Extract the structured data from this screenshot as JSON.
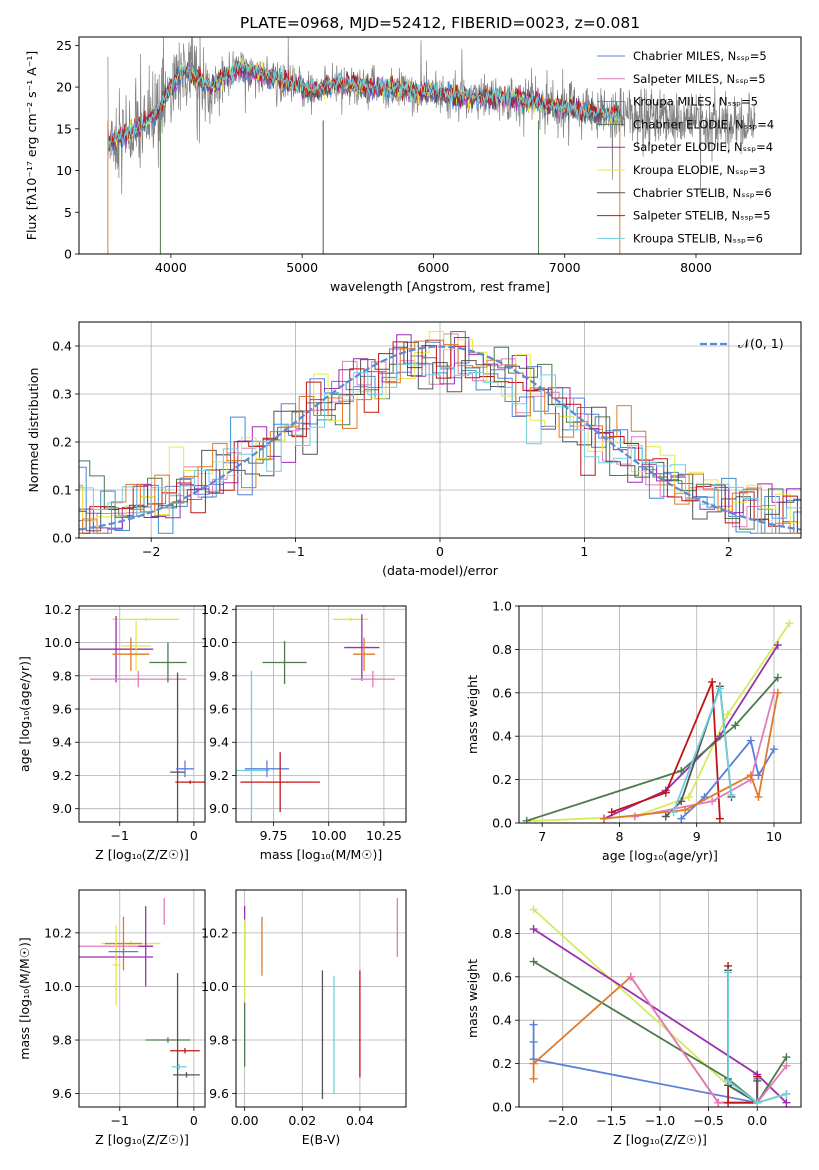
{
  "suptitle": "PLATE=0968, MJD=52412, FIBERID=0023, z=0.081",
  "colors": {
    "Chabrier MILES": "#5b7fd9",
    "Salpeter MILES": "#e07cbc",
    "Kroupa MILES": "#3a8fd0",
    "Chabrier ELODIE": "#4d7a4d",
    "Salpeter ELODIE": "#9a2fb0",
    "Kroupa ELODIE": "#e8e844",
    "Chabrier STELIB": "#555555",
    "Salpeter STELIB": "#c01515",
    "Kroupa STELIB": "#6fd0e0",
    "orange": "#e07a2a",
    "lime": "#d4ec5a",
    "teal": "#5a9a86",
    "data": "#808080"
  },
  "chart_data": [
    {
      "id": "spectrum",
      "type": "line",
      "xlabel": "wavelength [Angstrom, rest frame]",
      "ylabel": "Flux [fλ10⁻¹⁷ erg cm⁻² s⁻¹ A⁻¹]",
      "xlim": [
        3300,
        8800
      ],
      "ylim": [
        0,
        26
      ],
      "xticks": [
        "4000",
        "5000",
        "6000",
        "7000",
        "8000"
      ],
      "yticks": [
        "0",
        "5",
        "10",
        "15",
        "20",
        "25"
      ],
      "legend_position": "upper right",
      "legend": [
        {
          "name": "Chabrier MILES, Nₛₛₚ=5",
          "color": "#5b7fd9"
        },
        {
          "name": "Salpeter MILES, Nₛₛₚ=5",
          "color": "#e07cbc"
        },
        {
          "name": "Kroupa MILES, Nₛₛₚ=5",
          "color": "#3a8fd0"
        },
        {
          "name": "Chabrier ELODIE, Nₛₛₚ=4",
          "color": "#4d7a4d"
        },
        {
          "name": "Salpeter ELODIE, Nₛₛₚ=4",
          "color": "#9a2fb0"
        },
        {
          "name": "Kroupa ELODIE, Nₛₛₚ=3",
          "color": "#e8e844"
        },
        {
          "name": "Chabrier STELIB, Nₛₛₚ=6",
          "color": "#555555"
        },
        {
          "name": "Salpeter STELIB, Nₛₛₚ=5",
          "color": "#c01515"
        },
        {
          "name": "Kroupa STELIB, Nₛₛₚ=6",
          "color": "#6fd0e0"
        }
      ],
      "continuum": [
        [
          3520,
          13.5
        ],
        [
          3700,
          14.5
        ],
        [
          3900,
          17
        ],
        [
          4000,
          20
        ],
        [
          4100,
          22
        ],
        [
          4200,
          21
        ],
        [
          4300,
          20
        ],
        [
          4400,
          21
        ],
        [
          4500,
          22
        ],
        [
          4600,
          22
        ],
        [
          4700,
          21.5
        ],
        [
          4800,
          21
        ],
        [
          4900,
          20.5
        ],
        [
          5000,
          20
        ],
        [
          5100,
          19.5
        ],
        [
          5200,
          20
        ],
        [
          5300,
          20.5
        ],
        [
          5400,
          20.3
        ],
        [
          5500,
          20
        ],
        [
          5600,
          19.8
        ],
        [
          5800,
          19.5
        ],
        [
          6000,
          19.2
        ],
        [
          6200,
          18.8
        ],
        [
          6400,
          18.6
        ],
        [
          6500,
          18.8
        ],
        [
          6700,
          18.3
        ],
        [
          6900,
          17.8
        ],
        [
          7100,
          17.2
        ],
        [
          7300,
          16.8
        ],
        [
          7420,
          16.5
        ]
      ],
      "data_extent": [
        3520,
        8450
      ]
    },
    {
      "id": "residuals",
      "type": "histogram",
      "xlabel": "(data-model)/error",
      "ylabel": "Normed distribution",
      "xlim": [
        -2.5,
        2.5
      ],
      "ylim": [
        0,
        0.45
      ],
      "xticks": [
        "−2",
        "−1",
        "0",
        "1",
        "2"
      ],
      "yticks": [
        "0.0",
        "0.1",
        "0.2",
        "0.3",
        "0.4"
      ],
      "legend": [
        {
          "name": "𝒩(0, 1)",
          "color": "#5b8ad9",
          "style": "dashed"
        }
      ],
      "reference_curve": "normal(0,1)"
    },
    {
      "id": "age-vs-Z",
      "type": "errorbar",
      "xlabel": "Z [log₁₀(Z/Z☉)]",
      "ylabel": "age  [log₁₀(age/yr)]",
      "xlim": [
        -1.55,
        0.15
      ],
      "ylim": [
        8.92,
        10.22
      ],
      "xticks": [
        "−1",
        "0"
      ],
      "yticks": [
        "9.0",
        "9.2",
        "9.4",
        "9.6",
        "9.8",
        "10.0",
        "10.2"
      ],
      "points": [
        {
          "x": -0.65,
          "y": 10.14,
          "xerr": 0.45,
          "yerr": 0.01,
          "color": "#d4ec5a"
        },
        {
          "x": -1.05,
          "y": 9.96,
          "xerr": 0.5,
          "yerr": 0.2,
          "color": "#9a2fb0"
        },
        {
          "x": -0.78,
          "y": 9.98,
          "xerr": 0.2,
          "yerr": 0.15,
          "color": "#e8e844"
        },
        {
          "x": -0.85,
          "y": 9.93,
          "xerr": 0.25,
          "yerr": 0.1,
          "color": "#e07a2a"
        },
        {
          "x": -0.75,
          "y": 9.78,
          "xerr": 0.65,
          "yerr": 0.05,
          "color": "#e07cbc"
        },
        {
          "x": -0.35,
          "y": 9.88,
          "xerr": 0.25,
          "yerr": 0.12,
          "color": "#4d7a4d"
        },
        {
          "x": -0.22,
          "y": 9.22,
          "xerr": 0.1,
          "yerr": 0.6,
          "color": "#555555"
        },
        {
          "x": -0.12,
          "y": 9.24,
          "xerr": 0.12,
          "yerr": 0.05,
          "color": "#5b7fd9"
        },
        {
          "x": -0.05,
          "y": 9.16,
          "xerr": 0.2,
          "yerr": 0.01,
          "color": "#c01515"
        }
      ]
    },
    {
      "id": "age-vs-mass",
      "type": "errorbar",
      "xlabel": "mass [log₁₀(M/M☉)]",
      "ylabel": "",
      "xlim": [
        9.58,
        10.35
      ],
      "ylim": [
        8.92,
        10.22
      ],
      "xticks": [
        "9.75",
        "10.00",
        "10.25"
      ],
      "yticks": [
        "9.0",
        "9.2",
        "9.4",
        "9.6",
        "9.8",
        "10.0",
        "10.2"
      ],
      "points": [
        {
          "x": 10.1,
          "y": 10.14,
          "xerr": 0.08,
          "yerr": 0.01,
          "color": "#d4ec5a"
        },
        {
          "x": 10.15,
          "y": 9.97,
          "xerr": 0.08,
          "yerr": 0.2,
          "color": "#9a2fb0"
        },
        {
          "x": 10.16,
          "y": 9.93,
          "xerr": 0.05,
          "yerr": 0.1,
          "color": "#e07a2a"
        },
        {
          "x": 10.2,
          "y": 9.78,
          "xerr": 0.1,
          "yerr": 0.05,
          "color": "#e07cbc"
        },
        {
          "x": 9.8,
          "y": 9.88,
          "xerr": 0.1,
          "yerr": 0.13,
          "color": "#4d7a4d"
        },
        {
          "x": 9.65,
          "y": 9.23,
          "xerr": 0.08,
          "yerr": 0.6,
          "color": "#6fd0e0"
        },
        {
          "x": 9.72,
          "y": 9.24,
          "xerr": 0.1,
          "yerr": 0.05,
          "color": "#5b7fd9"
        },
        {
          "x": 9.78,
          "y": 9.16,
          "xerr": 0.18,
          "yerr": 0.18,
          "color": "#c01515"
        }
      ]
    },
    {
      "id": "weight-vs-age",
      "type": "line",
      "xlabel": "age  [log₁₀(age/yr)]",
      "ylabel": "mass weight",
      "xlim": [
        6.7,
        10.35
      ],
      "ylim": [
        0,
        1.0
      ],
      "xticks": [
        "7",
        "8",
        "9",
        "10"
      ],
      "yticks": [
        "0.0",
        "0.2",
        "0.4",
        "0.6",
        "0.8",
        "1.0"
      ],
      "series": [
        {
          "color": "#d4ec5a",
          "x": [
            6.9,
            8.2,
            8.9,
            9.4,
            10.2
          ],
          "y": [
            0.01,
            0.03,
            0.12,
            0.5,
            0.92
          ]
        },
        {
          "color": "#9a2fb0",
          "x": [
            7.8,
            8.6,
            9.3,
            10.05
          ],
          "y": [
            0.02,
            0.15,
            0.4,
            0.82
          ]
        },
        {
          "color": "#4d7a4d",
          "x": [
            6.8,
            8.8,
            9.5,
            10.05
          ],
          "y": [
            0.01,
            0.24,
            0.45,
            0.67
          ]
        },
        {
          "color": "#c01515",
          "x": [
            7.9,
            8.6,
            9.2,
            9.3
          ],
          "y": [
            0.05,
            0.14,
            0.65,
            0.02
          ]
        },
        {
          "color": "#555555",
          "x": [
            8.6,
            8.8,
            9.3,
            9.45
          ],
          "y": [
            0.03,
            0.1,
            0.63,
            0.12
          ]
        },
        {
          "color": "#5b7fd9",
          "x": [
            8.8,
            9.1,
            9.7,
            9.8,
            10.0
          ],
          "y": [
            0.02,
            0.12,
            0.38,
            0.22,
            0.34
          ]
        },
        {
          "color": "#e07cbc",
          "x": [
            8.2,
            9.2,
            9.7,
            10.0
          ],
          "y": [
            0.03,
            0.1,
            0.2,
            0.6
          ]
        },
        {
          "color": "#e07a2a",
          "x": [
            7.8,
            8.85,
            9.7,
            9.8,
            10.05
          ],
          "y": [
            0.02,
            0.06,
            0.22,
            0.12,
            0.6
          ]
        },
        {
          "color": "#6fd0e0",
          "x": [
            8.7,
            9.3,
            9.45
          ],
          "y": [
            0.05,
            0.62,
            0.13
          ]
        }
      ]
    },
    {
      "id": "mass-vs-Z",
      "type": "errorbar",
      "xlabel": "Z [log₁₀(Z/Z☉)]",
      "ylabel": "mass [log₁₀(M/M☉)]",
      "xlim": [
        -1.55,
        0.15
      ],
      "ylim": [
        9.55,
        10.36
      ],
      "xticks": [
        "−1",
        "0"
      ],
      "yticks": [
        "9.6",
        "9.8",
        "10.0",
        "10.2"
      ],
      "points": [
        {
          "x": -0.4,
          "y": 10.28,
          "xerr": 0.01,
          "yerr": 0.05,
          "color": "#e07cbc"
        },
        {
          "x": -1.05,
          "y": 10.15,
          "xerr": 0.5,
          "yerr": 0.01,
          "color": "#e07cbc"
        },
        {
          "x": -0.85,
          "y": 10.16,
          "xerr": 0.4,
          "yerr": 0.01,
          "color": "#d4ec5a"
        },
        {
          "x": -0.95,
          "y": 10.16,
          "xerr": 0.25,
          "yerr": 0.1,
          "color": "#e07a2a"
        },
        {
          "x": -0.65,
          "y": 10.15,
          "xerr": 0.1,
          "yerr": 0.15,
          "color": "#9a2fb0"
        },
        {
          "x": -1.05,
          "y": 10.11,
          "xerr": 0.5,
          "yerr": 0.01,
          "color": "#9a2fb0"
        },
        {
          "x": -1.05,
          "y": 10.08,
          "xerr": 0.05,
          "yerr": 0.15,
          "color": "#e8e844"
        },
        {
          "x": -0.95,
          "y": 10.13,
          "xerr": 0.2,
          "yerr": 0.01,
          "color": "#5b7fd9"
        },
        {
          "x": -0.35,
          "y": 9.8,
          "xerr": 0.3,
          "yerr": 0.01,
          "color": "#4d7a4d"
        },
        {
          "x": -0.22,
          "y": 9.8,
          "xerr": 0.01,
          "yerr": 0.25,
          "color": "#555555"
        },
        {
          "x": -0.12,
          "y": 9.76,
          "xerr": 0.2,
          "yerr": 0.01,
          "color": "#c01515"
        },
        {
          "x": -0.1,
          "y": 9.67,
          "xerr": 0.18,
          "yerr": 0.01,
          "color": "#555555"
        },
        {
          "x": -0.2,
          "y": 9.7,
          "xerr": 0.1,
          "yerr": 0.01,
          "color": "#6fd0e0"
        }
      ]
    },
    {
      "id": "mass-vs-EBV",
      "type": "errorbar",
      "xlabel": "E(B-V)",
      "ylabel": "",
      "xlim": [
        -0.003,
        0.056
      ],
      "ylim": [
        9.55,
        10.36
      ],
      "xticks": [
        "0.00",
        "0.02",
        "0.04"
      ],
      "yticks": [
        "9.6",
        "9.8",
        "10.0",
        "10.2"
      ],
      "points": [
        {
          "x": 0.0,
          "y": 10.2,
          "xerr": 0.0,
          "yerr": 0.1,
          "color": "#9a2fb0"
        },
        {
          "x": 0.0,
          "y": 10.1,
          "xerr": 0.0,
          "yerr": 0.15,
          "color": "#d4ec5a"
        },
        {
          "x": 0.0,
          "y": 9.82,
          "xerr": 0.0,
          "yerr": 0.12,
          "color": "#4d7a4d"
        },
        {
          "x": 0.006,
          "y": 10.15,
          "xerr": 0.0,
          "yerr": 0.11,
          "color": "#e07a2a"
        },
        {
          "x": 0.027,
          "y": 9.82,
          "xerr": 0.0,
          "yerr": 0.24,
          "color": "#555555"
        },
        {
          "x": 0.031,
          "y": 9.82,
          "xerr": 0.0,
          "yerr": 0.22,
          "color": "#6fd0e0"
        },
        {
          "x": 0.04,
          "y": 9.86,
          "xerr": 0.0,
          "yerr": 0.2,
          "color": "#c01515"
        },
        {
          "x": 0.053,
          "y": 10.22,
          "xerr": 0.0,
          "yerr": 0.11,
          "color": "#e07cbc"
        }
      ]
    },
    {
      "id": "weight-vs-Z",
      "type": "line",
      "xlabel": "Z [log₁₀(Z/Z☉)]",
      "ylabel": "mass weight",
      "xlim": [
        -2.45,
        0.45
      ],
      "ylim": [
        0,
        1.0
      ],
      "xticks": [
        "−2.0",
        "−1.5",
        "−1.0",
        "−0.5",
        "0.0"
      ],
      "yticks": [
        "0.0",
        "0.2",
        "0.4",
        "0.6",
        "0.8",
        "1.0"
      ],
      "series": [
        {
          "color": "#d4ec5a",
          "x": [
            -2.3,
            -0.3,
            0.0
          ],
          "y": [
            0.91,
            0.1,
            0.02
          ]
        },
        {
          "color": "#9a2fb0",
          "x": [
            -2.3,
            0.0,
            0.3
          ],
          "y": [
            0.82,
            0.15,
            0.02
          ]
        },
        {
          "color": "#4d7a4d",
          "x": [
            -2.3,
            -0.3,
            0.0,
            0.3
          ],
          "y": [
            0.67,
            0.13,
            0.02,
            0.23
          ]
        },
        {
          "color": "#5b7fd9",
          "x": [
            -2.3,
            -2.3,
            -2.3,
            0.0,
            0.0
          ],
          "y": [
            0.38,
            0.3,
            0.22,
            0.02,
            0.13
          ]
        },
        {
          "color": "#e07a2a",
          "x": [
            -2.3,
            -2.3,
            -1.3,
            -0.4,
            0.0,
            0.3
          ],
          "y": [
            0.13,
            0.2,
            0.6,
            0.02,
            0.02,
            0.06
          ]
        },
        {
          "color": "#e07cbc",
          "x": [
            -1.3,
            -0.4,
            0.0,
            0.3
          ],
          "y": [
            0.6,
            0.02,
            0.02,
            0.19
          ]
        },
        {
          "color": "#c01515",
          "x": [
            -0.3,
            -0.3,
            0.0,
            0.0
          ],
          "y": [
            0.65,
            0.02,
            0.02,
            0.14
          ]
        },
        {
          "color": "#555555",
          "x": [
            -0.3,
            -0.3,
            0.0,
            0.0
          ],
          "y": [
            0.63,
            0.1,
            0.02,
            0.12
          ]
        },
        {
          "color": "#6fd0e0",
          "x": [
            -0.3,
            -0.3,
            0.0,
            0.3
          ],
          "y": [
            0.62,
            0.12,
            0.02,
            0.06
          ]
        }
      ]
    }
  ]
}
